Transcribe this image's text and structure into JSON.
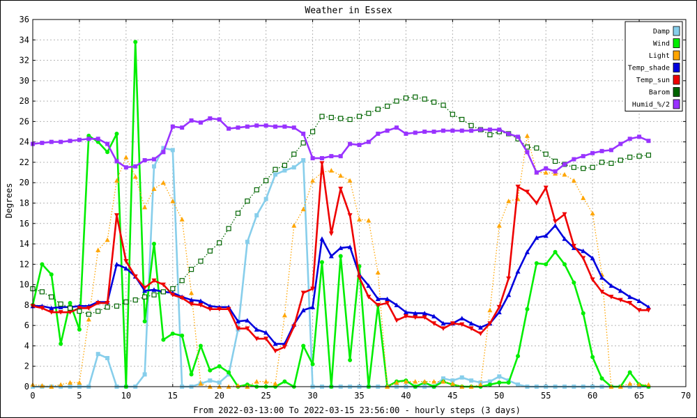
{
  "chart_data": {
    "type": "line",
    "title": "Weather in Essex",
    "xlabel": "From 2022-03-13:00 To 2022-03-15 23:56:00 - hourly steps (3 days)",
    "ylabel": "Degrees",
    "xlim": [
      0,
      70
    ],
    "ylim": [
      0,
      36
    ],
    "xticks": [
      0,
      5,
      10,
      15,
      20,
      25,
      30,
      35,
      40,
      45,
      50,
      55,
      60,
      65,
      70
    ],
    "yticks": [
      0,
      2,
      4,
      6,
      8,
      10,
      12,
      14,
      16,
      18,
      20,
      22,
      24,
      26,
      28,
      30,
      32,
      34,
      36
    ],
    "grid": true,
    "legend_position": "top-right",
    "series": [
      {
        "name": "Damp",
        "color": "#87ceeb",
        "marker": "square",
        "line": "solid",
        "values": [
          0,
          0,
          0,
          0,
          0,
          0,
          0,
          3.2,
          2.8,
          0,
          0,
          0,
          1.2,
          21.6,
          23.4,
          23.2,
          0,
          0,
          0.3,
          0.6,
          0.4,
          1.2,
          5.6,
          14.2,
          16.8,
          18.4,
          20.8,
          21.2,
          21.5,
          22.2,
          0,
          0,
          0,
          0,
          0,
          0,
          0,
          0,
          0,
          0,
          0,
          0,
          0,
          0,
          0.8,
          0.6,
          0.9,
          0.6,
          0.4,
          0.5,
          1,
          0.6,
          0.2,
          0,
          0,
          0,
          0,
          0,
          0,
          0,
          0,
          0,
          0,
          0,
          0,
          0,
          0
        ]
      },
      {
        "name": "Wind",
        "color": "#00ee00",
        "marker": "circle",
        "line": "solid",
        "values": [
          8,
          12,
          11,
          4.2,
          8.2,
          5.6,
          24.6,
          24,
          23,
          24.8,
          0,
          33.8,
          6.4,
          14,
          4.6,
          5.2,
          5,
          1.2,
          4,
          1.6,
          2,
          1.4,
          0,
          0.2,
          0,
          0,
          0,
          0.5,
          0,
          4,
          2.2,
          12.2,
          0,
          12.8,
          2.6,
          11.8,
          0,
          8,
          0,
          0.5,
          0.6,
          0,
          0.4,
          0,
          0.5,
          0.2,
          0,
          0,
          0,
          0.2,
          0.4,
          0.4,
          3,
          7.6,
          12.1,
          12,
          13.2,
          12,
          10.2,
          7.2,
          2.9,
          0.8,
          0,
          0,
          1.4,
          0.2,
          0
        ]
      },
      {
        "name": "Light",
        "color": "#ffa500",
        "marker": "triangle",
        "line": "dotted",
        "values": [
          0.2,
          0.1,
          0,
          0.2,
          0.4,
          0.4,
          6.6,
          13.4,
          14.4,
          20.2,
          22.5,
          20.6,
          17.6,
          19.4,
          20,
          18.2,
          16.4,
          9.2,
          0.3,
          0,
          0,
          0,
          0.1,
          0,
          0.5,
          0.5,
          0.3,
          7,
          15.8,
          17.4,
          20.2,
          21,
          21.2,
          20.7,
          20.2,
          16.4,
          16.3,
          11.2,
          0,
          0.4,
          0.5,
          0.5,
          0.5,
          0.5,
          0.5,
          0.3,
          0,
          0,
          0.2,
          7.5,
          15.8,
          18.2,
          18.4,
          24.6,
          21,
          21,
          20.9,
          20.8,
          20.2,
          18.5,
          17,
          11,
          0,
          0,
          0.3,
          0.2,
          0.2
        ]
      },
      {
        "name": "Temp_shade",
        "color": "#0000dd",
        "marker": "triangle",
        "line": "solid",
        "values": [
          7.9,
          7.9,
          7.7,
          7.8,
          7.8,
          7.9,
          7.9,
          8.3,
          8.3,
          12,
          11.6,
          10.8,
          9.4,
          9.5,
          9.3,
          9.2,
          8.8,
          8.5,
          8.4,
          7.9,
          7.8,
          7.8,
          6.4,
          6.5,
          5.6,
          5.3,
          4.2,
          4.2,
          6.1,
          7.5,
          7.8,
          14.5,
          12.8,
          13.6,
          13.7,
          11,
          9.9,
          8.6,
          8.6,
          8,
          7.3,
          7.2,
          7.2,
          6.9,
          6.2,
          6.2,
          6.7,
          6.2,
          5.8,
          6.2,
          7.3,
          9,
          11.3,
          13.2,
          14.6,
          14.8,
          15.8,
          14.5,
          13.6,
          13.3,
          12.6,
          10.7,
          9.9,
          9.4,
          8.8,
          8.4,
          7.8
        ]
      },
      {
        "name": "Temp_sun",
        "color": "#ee0000",
        "marker": "triangle-down",
        "line": "solid",
        "values": [
          7.9,
          7.7,
          7.3,
          7.3,
          7.3,
          7.7,
          7.7,
          8.2,
          8.2,
          16.8,
          12.3,
          10.8,
          9.7,
          10.4,
          10,
          9,
          8.7,
          8.1,
          8,
          7.6,
          7.6,
          7.6,
          5.7,
          5.7,
          4.7,
          4.7,
          3.5,
          3.9,
          5.9,
          9.2,
          9.6,
          21.9,
          15,
          19.4,
          16.8,
          10.7,
          8.8,
          8,
          8.2,
          6.5,
          6.9,
          6.8,
          6.8,
          6.2,
          5.7,
          6.2,
          6.1,
          5.7,
          5.2,
          6.2,
          7.8,
          10.6,
          19.6,
          19.1,
          18,
          19.5,
          16.2,
          16.9,
          13.8,
          12.6,
          10.5,
          9.3,
          8.8,
          8.5,
          8.2,
          7.5,
          7.5
        ]
      },
      {
        "name": "Barom",
        "color": "#006400",
        "marker": "square-open",
        "line": "dotted",
        "values": [
          9.6,
          9.3,
          8.8,
          8.1,
          7.7,
          7.4,
          7.1,
          7.4,
          7.8,
          7.9,
          8.3,
          8.5,
          8.8,
          9,
          9.3,
          9.6,
          10.4,
          11.5,
          12.3,
          13.3,
          14.1,
          15.5,
          17,
          18.2,
          19.3,
          20.2,
          21.3,
          21.7,
          22.8,
          23.9,
          25,
          26.5,
          26.4,
          26.3,
          26.2,
          26.5,
          26.8,
          27.2,
          27.5,
          28,
          28.3,
          28.4,
          28.2,
          27.9,
          27.6,
          26.7,
          26.2,
          25.6,
          25.2,
          24.7,
          25,
          24.8,
          24.3,
          23.5,
          23.4,
          22.8,
          22.1,
          21.8,
          21.5,
          21.4,
          21.5,
          22,
          21.9,
          22.2,
          22.5,
          22.6,
          22.7
        ]
      },
      {
        "name": "Humid_%/2",
        "color": "#9933ff",
        "marker": "square",
        "line": "solid",
        "values": [
          23.8,
          23.9,
          24,
          24,
          24.1,
          24.2,
          24.3,
          24.3,
          23.8,
          22.1,
          21.5,
          21.6,
          22.2,
          22.3,
          23,
          25.5,
          25.4,
          26.1,
          25.9,
          26.3,
          26.2,
          25.3,
          25.4,
          25.5,
          25.6,
          25.6,
          25.5,
          25.5,
          25.4,
          24.8,
          22.4,
          22.4,
          22.6,
          22.6,
          23.8,
          23.7,
          24,
          24.8,
          25.1,
          25.4,
          24.8,
          24.9,
          25,
          25,
          25.1,
          25.1,
          25.1,
          25.1,
          25.2,
          25.2,
          25.2,
          24.8,
          24.5,
          23,
          21,
          21.4,
          21.1,
          21.8,
          22.3,
          22.6,
          22.9,
          23.1,
          23.2,
          23.8,
          24.3,
          24.5,
          24.1
        ]
      }
    ]
  }
}
